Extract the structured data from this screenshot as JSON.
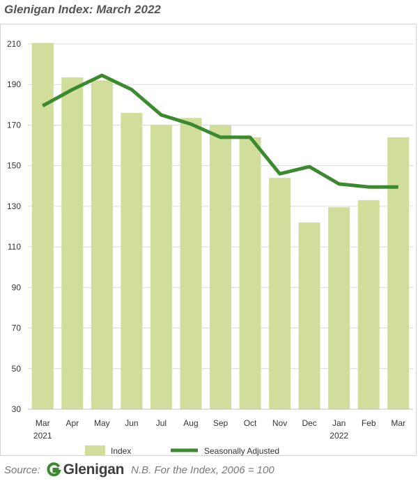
{
  "title": "Glenigan Index: March 2022",
  "footer": {
    "source_label": "Source:",
    "brand_name": "Glenigan",
    "brand_icon": "glenigan-g-logo-icon",
    "note": "N.B. For the Index, 2006 = 100"
  },
  "colors": {
    "bar": "#d0dd9b",
    "line": "#3b8a2f",
    "grid": "#d9d9d9",
    "axis": "#555555"
  },
  "chart_data": {
    "type": "bar",
    "categories": [
      "Mar",
      "Apr",
      "May",
      "Jun",
      "Jul",
      "Aug",
      "Sep",
      "Oct",
      "Nov",
      "Dec",
      "Jan",
      "Feb",
      "Mar"
    ],
    "year_labels": [
      "2021",
      "",
      "",
      "",
      "",
      "",
      "",
      "",
      "",
      "",
      "2022",
      "",
      ""
    ],
    "series": [
      {
        "name": "Index",
        "kind": "bar",
        "values": [
          210.5,
          193.5,
          192,
          176,
          170,
          173.5,
          170,
          164,
          144,
          122,
          129.5,
          133,
          164
        ]
      },
      {
        "name": "Seasonally Adjusted",
        "kind": "line",
        "values": [
          179.5,
          187.5,
          194.5,
          187.5,
          175,
          170.5,
          164,
          164,
          146,
          149.5,
          141,
          139.5,
          139.5
        ]
      }
    ],
    "yticks": [
      30,
      50,
      70,
      90,
      110,
      130,
      150,
      170,
      190,
      210
    ],
    "ylim": [
      30,
      210
    ],
    "grid": true,
    "legend_position": "bottom"
  }
}
